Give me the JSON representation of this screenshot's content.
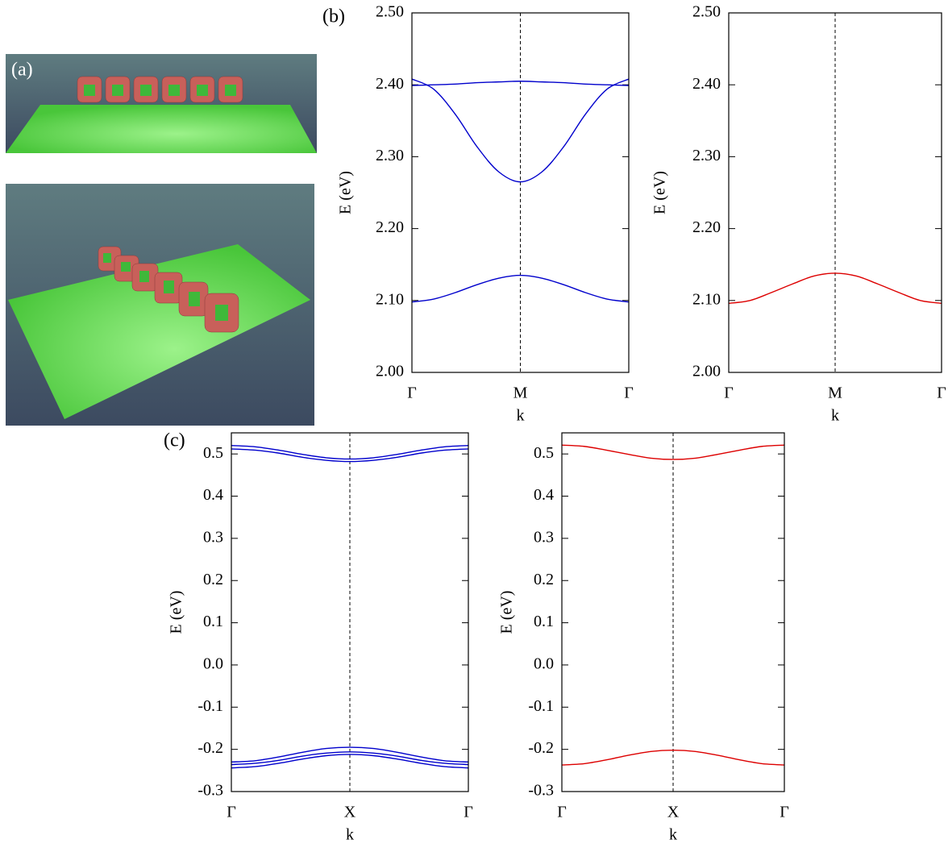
{
  "figure_a": {
    "panel_label": "(a)"
  },
  "chart_data": [
    {
      "type": "line",
      "panel_label": "(b)",
      "ylabel": "E (eV)",
      "xlabel": "k",
      "x": [
        0,
        0.1,
        0.2,
        0.3,
        0.4,
        0.5,
        0.6,
        0.7,
        0.8,
        0.9,
        1
      ],
      "xlim": [
        0,
        1
      ],
      "xticks": [
        {
          "value": 0,
          "label": "Γ"
        },
        {
          "value": 0.5,
          "label": "M"
        },
        {
          "value": 1,
          "label": "Γ"
        }
      ],
      "ylim": [
        2.0,
        2.5
      ],
      "yticks": [
        {
          "value": 2.0,
          "label": "2.00"
        },
        {
          "value": 2.1,
          "label": "2.10"
        },
        {
          "value": 2.2,
          "label": "2.20"
        },
        {
          "value": 2.3,
          "label": "2.30"
        },
        {
          "value": 2.4,
          "label": "2.40"
        },
        {
          "value": 2.5,
          "label": "2.50"
        }
      ],
      "xgrid": "dashed",
      "series": [
        {
          "color": "#0000cc",
          "values": [
            2.399,
            2.4,
            2.401,
            2.403,
            2.404,
            2.405,
            2.404,
            2.403,
            2.401,
            2.4,
            2.399
          ]
        },
        {
          "color": "#0000cc",
          "values": [
            2.408,
            2.394,
            2.359,
            2.314,
            2.279,
            2.265,
            2.279,
            2.314,
            2.359,
            2.394,
            2.408
          ]
        },
        {
          "color": "#0000cc",
          "values": [
            2.098,
            2.102,
            2.111,
            2.122,
            2.131,
            2.135,
            2.131,
            2.122,
            2.111,
            2.102,
            2.098
          ]
        }
      ]
    },
    {
      "type": "line",
      "ylabel": "E (eV)",
      "xlabel": "k",
      "x": [
        0,
        0.1,
        0.2,
        0.3,
        0.4,
        0.5,
        0.6,
        0.7,
        0.8,
        0.9,
        1
      ],
      "xlim": [
        0,
        1
      ],
      "xticks": [
        {
          "value": 0,
          "label": "Γ"
        },
        {
          "value": 0.5,
          "label": "M"
        },
        {
          "value": 1,
          "label": "Γ"
        }
      ],
      "ylim": [
        2.0,
        2.5
      ],
      "yticks": [
        {
          "value": 2.0,
          "label": "2.00"
        },
        {
          "value": 2.1,
          "label": "2.10"
        },
        {
          "value": 2.2,
          "label": "2.20"
        },
        {
          "value": 2.3,
          "label": "2.30"
        },
        {
          "value": 2.4,
          "label": "2.40"
        },
        {
          "value": 2.5,
          "label": "2.50"
        }
      ],
      "xgrid": "dashed",
      "series": [
        {
          "color": "#dd0000",
          "values": [
            2.096,
            2.1,
            2.111,
            2.123,
            2.134,
            2.138,
            2.134,
            2.123,
            2.111,
            2.1,
            2.096
          ]
        }
      ]
    },
    {
      "type": "line",
      "panel_label": "(c)",
      "ylabel": "E (eV)",
      "xlabel": "k",
      "x": [
        0,
        0.1,
        0.2,
        0.3,
        0.4,
        0.5,
        0.6,
        0.7,
        0.8,
        0.9,
        1
      ],
      "xlim": [
        0,
        1
      ],
      "xticks": [
        {
          "value": 0,
          "label": "Γ"
        },
        {
          "value": 0.5,
          "label": "X"
        },
        {
          "value": 1,
          "label": "Γ"
        }
      ],
      "ylim": [
        -0.3,
        0.55
      ],
      "yticks": [
        -0.3,
        -0.2,
        -0.1,
        {
          "value": 0,
          "label": "0.0"
        },
        0.1,
        0.2,
        0.3,
        0.4,
        0.5
      ],
      "xgrid": "dashed",
      "series": [
        {
          "color": "#0000cc",
          "values": [
            0.52,
            0.517,
            0.509,
            0.499,
            0.491,
            0.488,
            0.491,
            0.499,
            0.509,
            0.517,
            0.52
          ]
        },
        {
          "color": "#0000cc",
          "values": [
            0.512,
            0.509,
            0.502,
            0.492,
            0.485,
            0.482,
            0.485,
            0.492,
            0.502,
            0.509,
            0.512
          ]
        },
        {
          "color": "#0000cc",
          "values": [
            -0.23,
            -0.227,
            -0.218,
            -0.207,
            -0.198,
            -0.195,
            -0.198,
            -0.207,
            -0.218,
            -0.227,
            -0.23
          ]
        },
        {
          "color": "#0000cc",
          "values": [
            -0.236,
            -0.233,
            -0.226,
            -0.216,
            -0.209,
            -0.206,
            -0.209,
            -0.216,
            -0.226,
            -0.233,
            -0.236
          ]
        },
        {
          "color": "#0000cc",
          "values": [
            -0.244,
            -0.241,
            -0.233,
            -0.223,
            -0.215,
            -0.212,
            -0.215,
            -0.223,
            -0.233,
            -0.241,
            -0.244
          ]
        }
      ]
    },
    {
      "type": "line",
      "ylabel": "E (eV)",
      "xlabel": "k",
      "x": [
        0,
        0.1,
        0.2,
        0.3,
        0.4,
        0.5,
        0.6,
        0.7,
        0.8,
        0.9,
        1
      ],
      "xlim": [
        0,
        1
      ],
      "xticks": [
        {
          "value": 0,
          "label": "Γ"
        },
        {
          "value": 0.5,
          "label": "X"
        },
        {
          "value": 1,
          "label": "Γ"
        }
      ],
      "ylim": [
        -0.3,
        0.55
      ],
      "yticks": [
        -0.3,
        -0.2,
        -0.1,
        {
          "value": 0,
          "label": "0.0"
        },
        0.1,
        0.2,
        0.3,
        0.4,
        0.5
      ],
      "xgrid": "dashed",
      "series": [
        {
          "color": "#dd0000",
          "values": [
            0.521,
            0.518,
            0.509,
            0.499,
            0.49,
            0.487,
            0.49,
            0.499,
            0.509,
            0.518,
            0.521
          ]
        },
        {
          "color": "#dd0000",
          "values": [
            -0.237,
            -0.234,
            -0.225,
            -0.214,
            -0.205,
            -0.202,
            -0.205,
            -0.214,
            -0.225,
            -0.234,
            -0.237
          ]
        }
      ]
    }
  ]
}
